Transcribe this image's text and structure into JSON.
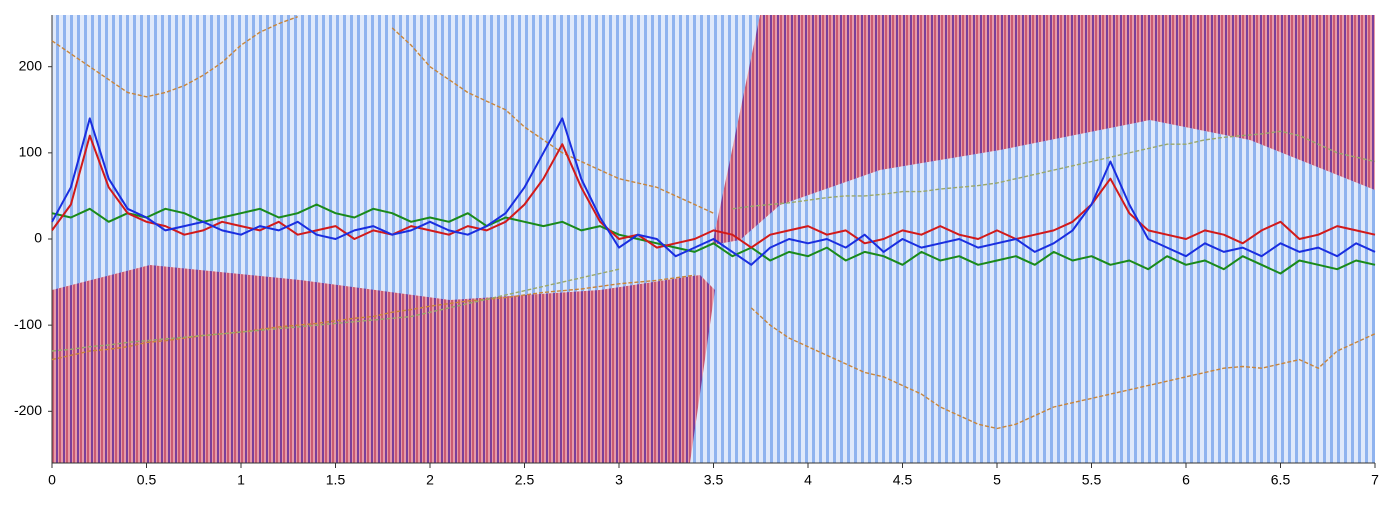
{
  "chart_data": {
    "type": "line",
    "x": [
      0,
      0.1,
      0.2,
      0.3,
      0.4,
      0.5,
      0.6,
      0.7,
      0.8,
      0.9,
      1,
      1.1,
      1.2,
      1.3,
      1.4,
      1.5,
      1.6,
      1.7,
      1.8,
      1.9,
      2,
      2.1,
      2.2,
      2.3,
      2.4,
      2.5,
      2.6,
      2.7,
      2.8,
      2.9,
      3,
      3.1,
      3.2,
      3.3,
      3.4,
      3.5,
      3.6,
      3.7,
      3.8,
      3.9,
      4,
      4.1,
      4.2,
      4.3,
      4.4,
      4.5,
      4.6,
      4.7,
      4.8,
      4.9,
      5,
      5.1,
      5.2,
      5.3,
      5.4,
      5.5,
      5.6,
      5.7,
      5.8,
      5.9,
      6,
      6.1,
      6.2,
      6.3,
      6.4,
      6.5,
      6.6,
      6.7,
      6.8,
      6.9,
      7
    ],
    "series": [
      {
        "color": "#c8853a",
        "values": [
          230,
          215,
          200,
          185,
          170,
          165,
          170,
          178,
          190,
          205,
          225,
          240,
          250,
          258,
          null,
          null,
          null,
          null,
          245,
          225,
          200,
          185,
          170,
          160,
          150,
          130,
          115,
          100,
          90,
          80,
          70,
          65,
          60,
          50,
          40,
          30,
          null,
          null,
          null,
          null,
          null,
          null,
          null,
          null,
          null,
          null,
          null,
          null,
          null,
          null,
          null,
          null,
          null,
          null,
          null,
          null,
          null,
          null,
          null,
          null,
          null,
          null,
          null,
          null,
          null,
          null,
          null,
          null,
          null,
          null,
          null
        ]
      },
      {
        "color": "#c8853a",
        "values": [
          -140,
          -135,
          -130,
          -128,
          -125,
          -120,
          -118,
          -115,
          -112,
          -110,
          -108,
          -105,
          -102,
          -100,
          -98,
          -95,
          -92,
          -90,
          -85,
          -82,
          -78,
          -75,
          -72,
          -70,
          -68,
          -65,
          -62,
          -60,
          -58,
          -55,
          -52,
          -50,
          -48,
          -45,
          -42,
          null,
          null,
          -80,
          -100,
          -115,
          -125,
          -135,
          -145,
          -155,
          -160,
          -170,
          -180,
          -195,
          -205,
          -215,
          -220,
          -215,
          -205,
          -195,
          -190,
          -185,
          -180,
          -175,
          -170,
          -165,
          -160,
          -155,
          -150,
          -148,
          -150,
          -145,
          -140,
          -150,
          -130,
          -120,
          -110
        ]
      },
      {
        "color": "#9aa86a",
        "values": [
          null,
          null,
          null,
          null,
          null,
          null,
          null,
          null,
          null,
          null,
          null,
          null,
          null,
          null,
          null,
          null,
          null,
          null,
          null,
          null,
          null,
          null,
          null,
          null,
          null,
          null,
          null,
          null,
          null,
          null,
          null,
          null,
          null,
          null,
          null,
          null,
          35,
          38,
          40,
          42,
          45,
          48,
          50,
          50,
          52,
          55,
          55,
          58,
          60,
          62,
          65,
          70,
          75,
          80,
          85,
          90,
          95,
          100,
          105,
          110,
          110,
          115,
          118,
          120,
          122,
          125,
          120,
          110,
          100,
          95,
          90
        ]
      },
      {
        "color": "#9aa86a",
        "values": [
          -130,
          -128,
          -125,
          -123,
          -120,
          -118,
          -116,
          -114,
          -112,
          -110,
          -108,
          -106,
          -104,
          -102,
          -100,
          -98,
          -96,
          -94,
          -92,
          -90,
          -85,
          -80,
          -75,
          -70,
          -65,
          -60,
          -55,
          -50,
          -45,
          -40,
          -35,
          null,
          null,
          null,
          null,
          null,
          null,
          null,
          null,
          null,
          null,
          null,
          null,
          null,
          null,
          null,
          null,
          null,
          null,
          null,
          null,
          null,
          null,
          null,
          null,
          null,
          null,
          null,
          null,
          null,
          null,
          null,
          null,
          null,
          null,
          null,
          null,
          null,
          null,
          null,
          null
        ]
      },
      {
        "color": "#1a8a1a",
        "values": [
          30,
          25,
          35,
          20,
          30,
          25,
          35,
          30,
          20,
          25,
          30,
          35,
          25,
          30,
          40,
          30,
          25,
          35,
          30,
          20,
          25,
          20,
          30,
          15,
          25,
          20,
          15,
          20,
          10,
          15,
          5,
          0,
          -5,
          -10,
          -15,
          -5,
          -20,
          -10,
          -25,
          -15,
          -20,
          -10,
          -25,
          -15,
          -20,
          -30,
          -15,
          -25,
          -20,
          -30,
          -25,
          -20,
          -30,
          -15,
          -25,
          -20,
          -30,
          -25,
          -35,
          -20,
          -30,
          -25,
          -35,
          -20,
          -30,
          -40,
          -25,
          -30,
          -35,
          -25,
          -30
        ]
      },
      {
        "color": "#d21a1a",
        "values": [
          10,
          40,
          120,
          60,
          30,
          20,
          15,
          5,
          10,
          20,
          15,
          10,
          20,
          5,
          10,
          15,
          0,
          10,
          5,
          15,
          10,
          5,
          15,
          10,
          20,
          40,
          70,
          110,
          60,
          20,
          0,
          5,
          -10,
          -5,
          0,
          10,
          5,
          -10,
          5,
          10,
          15,
          5,
          10,
          -5,
          0,
          10,
          5,
          15,
          5,
          0,
          10,
          0,
          5,
          10,
          20,
          40,
          70,
          30,
          10,
          5,
          0,
          10,
          5,
          -5,
          10,
          20,
          0,
          5,
          15,
          10,
          5
        ]
      },
      {
        "color": "#1a2ee0",
        "values": [
          20,
          60,
          140,
          70,
          35,
          25,
          10,
          15,
          20,
          10,
          5,
          15,
          10,
          20,
          5,
          0,
          10,
          15,
          5,
          10,
          20,
          10,
          5,
          15,
          30,
          60,
          100,
          140,
          70,
          25,
          -10,
          5,
          0,
          -20,
          -10,
          0,
          -15,
          -30,
          -10,
          0,
          -5,
          0,
          -10,
          5,
          -15,
          0,
          -10,
          -5,
          0,
          -10,
          -5,
          0,
          -15,
          -5,
          10,
          40,
          90,
          40,
          0,
          -10,
          -20,
          -5,
          -15,
          -10,
          -20,
          -5,
          -15,
          -10,
          -20,
          -5,
          -15
        ]
      }
    ],
    "xlim": [
      0,
      7
    ],
    "ylim": [
      -260,
      260
    ],
    "xticks": [
      0,
      0.5,
      1,
      1.5,
      2,
      2.5,
      3,
      3.5,
      4,
      4.5,
      5,
      5.5,
      6,
      6.5,
      7
    ],
    "yticks": [
      -200,
      -100,
      0,
      100,
      200
    ]
  }
}
